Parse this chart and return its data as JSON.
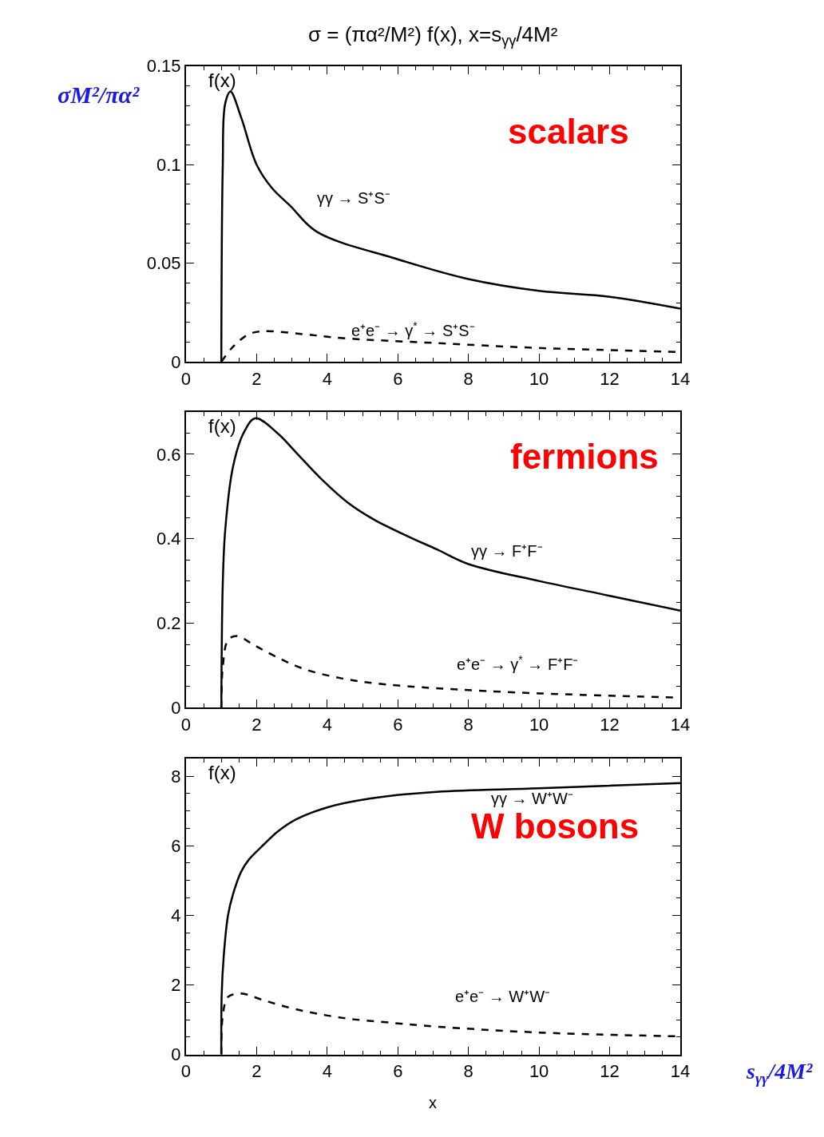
{
  "chart_data": [
    {
      "type": "line",
      "title": "σ = (πα²/M²) f(x), x=s$_{γγ}$/4M²",
      "ylabel": "f(x)",
      "annotations": [
        "σM²/πα²",
        "scalars"
      ],
      "xlim": [
        0,
        14
      ],
      "xticks": [
        0,
        2,
        4,
        6,
        8,
        10,
        12,
        14
      ],
      "ylim": [
        0,
        0.15
      ],
      "yticks": [
        0,
        0.05,
        0.1,
        0.15
      ],
      "series": [
        {
          "name": "γγ → S⁺S⁻",
          "color": "#000000",
          "line_style": "solid",
          "x": [
            1,
            1.04,
            1.11,
            1.26,
            1.56,
            2.0,
            2.44,
            2.96,
            3.7,
            6,
            8,
            10,
            12,
            14
          ],
          "values": [
            0,
            0.098,
            0.131,
            0.137,
            0.124,
            0.1,
            0.088,
            0.079,
            0.066,
            0.052,
            0.042,
            0.036,
            0.033,
            0.027
          ]
        },
        {
          "name": "e⁺e⁻ → γ$^{*}$ → S⁺S⁻",
          "color": "#000000",
          "line_style": "dashed",
          "x": [
            1,
            1.33,
            1.78,
            2.22,
            3.33,
            4.44,
            7.1,
            10,
            14
          ],
          "values": [
            0,
            0.0076,
            0.014,
            0.0155,
            0.014,
            0.012,
            0.0095,
            0.007,
            0.005
          ]
        }
      ]
    },
    {
      "type": "line",
      "ylabel": "f(x)",
      "annotations": [
        "fermions"
      ],
      "xlim": [
        0,
        14
      ],
      "xticks": [
        0,
        2,
        4,
        6,
        8,
        10,
        12,
        14
      ],
      "ylim": [
        0,
        0.7
      ],
      "yticks": [
        0,
        0.2,
        0.4,
        0.6
      ],
      "series": [
        {
          "name": "γγ → F⁺F⁻",
          "color": "#000000",
          "line_style": "solid",
          "x": [
            1,
            1.04,
            1.11,
            1.33,
            1.63,
            1.96,
            2.59,
            3.11,
            3.85,
            4.59,
            5.33,
            6.3,
            7.1,
            8,
            10,
            12,
            14
          ],
          "values": [
            0,
            0.29,
            0.42,
            0.57,
            0.65,
            0.685,
            0.65,
            0.605,
            0.54,
            0.485,
            0.445,
            0.405,
            0.375,
            0.34,
            0.3,
            0.265,
            0.23
          ]
        },
        {
          "name": "e⁺e⁻ → γ$^{*}$ → F⁺F⁻",
          "color": "#000000",
          "line_style": "dashed",
          "x": [
            1,
            1.04,
            1.19,
            1.44,
            1.93,
            2.52,
            3.33,
            4.44,
            5.56,
            7.1,
            10,
            14
          ],
          "values": [
            0,
            0.095,
            0.16,
            0.17,
            0.148,
            0.122,
            0.092,
            0.069,
            0.056,
            0.046,
            0.034,
            0.024
          ]
        }
      ]
    },
    {
      "type": "line",
      "ylabel": "f(x)",
      "xlabel": "x",
      "annotations": [
        "W bosons",
        "s$_{γγ}$/4M²"
      ],
      "xlim": [
        0,
        14
      ],
      "xticks": [
        0,
        2,
        4,
        6,
        8,
        10,
        12,
        14
      ],
      "ylim": [
        0,
        8.5
      ],
      "yticks": [
        0,
        2,
        4,
        6,
        8
      ],
      "series": [
        {
          "name": "γγ → W⁺W⁻",
          "color": "#000000",
          "line_style": "solid",
          "x": [
            1,
            1.01,
            1.07,
            1.19,
            1.33,
            1.56,
            1.78,
            2.22,
            2.59,
            3.11,
            4.0,
            5.19,
            7.1,
            10,
            14
          ],
          "values": [
            0,
            1.7,
            2.85,
            4.0,
            4.6,
            5.25,
            5.6,
            6.05,
            6.4,
            6.75,
            7.1,
            7.35,
            7.55,
            7.65,
            7.8
          ]
        },
        {
          "name": "e⁺e⁻ → W⁺W⁻",
          "color": "#000000",
          "line_style": "dashed",
          "x": [
            1,
            1.04,
            1.19,
            1.56,
            2.22,
            3.11,
            4.44,
            5.93,
            7.1,
            10,
            14
          ],
          "values": [
            0,
            1.1,
            1.65,
            1.75,
            1.55,
            1.3,
            1.05,
            0.9,
            0.8,
            0.63,
            0.52
          ]
        }
      ]
    }
  ]
}
